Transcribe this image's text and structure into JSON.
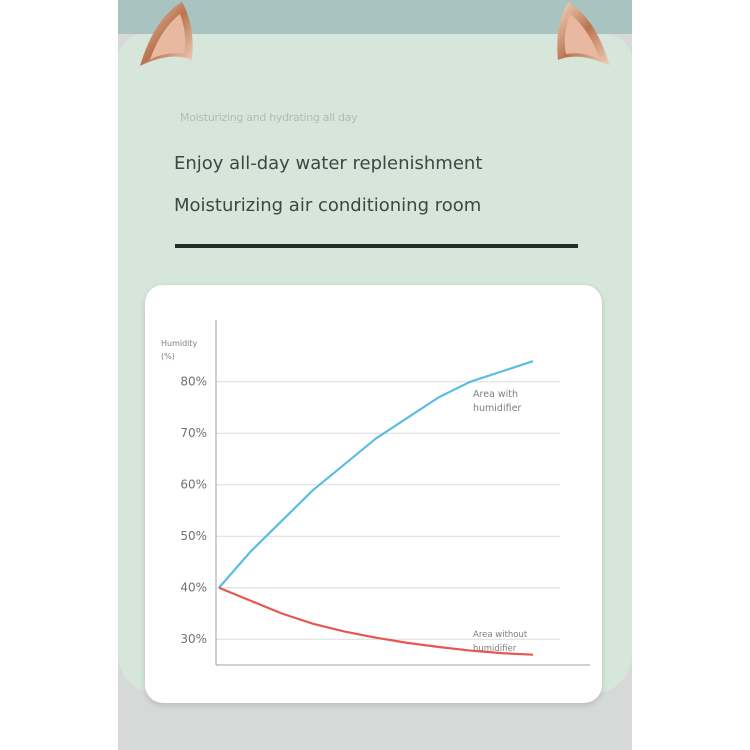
{
  "header": {
    "tagline": "Moisturizing and hydrating all day",
    "lines": [
      "Enjoy all-day water replenishment",
      "Moisturizing air conditioning room"
    ]
  },
  "chart_data": {
    "type": "line",
    "y_label": "Humidity (%)",
    "categories": [
      null,
      null,
      null,
      null,
      null,
      null,
      null,
      null,
      null,
      null,
      null
    ],
    "series": [
      {
        "name": "Area with humidifier",
        "color": "#5bbde4",
        "values": [
          40,
          47,
          53,
          59,
          64,
          69,
          73,
          77,
          80,
          82,
          84
        ]
      },
      {
        "name": "Area without humidifier",
        "color": "#e8564f",
        "values": [
          40,
          37.5,
          35,
          33,
          31.5,
          30.3,
          29.3,
          28.5,
          27.8,
          27.3,
          27
        ]
      }
    ],
    "ylim": [
      25,
      92
    ],
    "yticks": [
      {
        "value": 30,
        "label": "30%"
      },
      {
        "value": 40,
        "label": "40%"
      },
      {
        "value": 50,
        "label": "50%"
      },
      {
        "value": 60,
        "label": "60%"
      },
      {
        "value": 70,
        "label": "70%"
      },
      {
        "value": 80,
        "label": "80%"
      }
    ],
    "grid": true
  }
}
